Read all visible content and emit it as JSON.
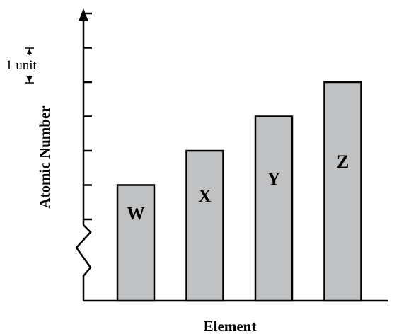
{
  "chart_data": {
    "type": "bar",
    "categories": [
      "W",
      "X",
      "Y",
      "Z"
    ],
    "values": [
      1,
      2,
      3,
      4
    ],
    "value_note": "",
    "xlabel": "Element",
    "ylabel": "Atomic Number",
    "y_unit_annotation": "1 unit",
    "y_axis_break": true,
    "tick_count": 7,
    "ylim": [
      -1,
      6
    ],
    "bar_color": "#c0c1c3",
    "grid": false
  }
}
